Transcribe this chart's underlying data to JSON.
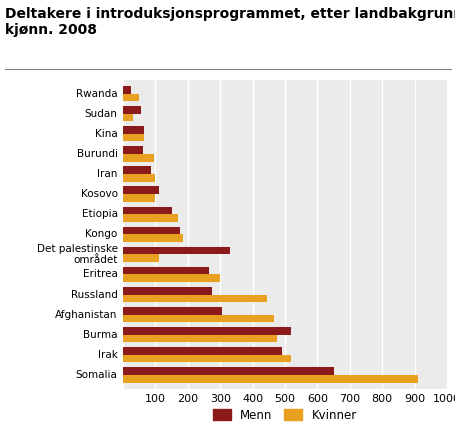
{
  "title_line1": "Deltakere i introduksjonsprogrammet, etter landbakgrunn og",
  "title_line2": "kjønn. 2008",
  "countries": [
    "Somalia",
    "Irak",
    "Burma",
    "Afghanistan",
    "Russland",
    "Eritrea",
    "Det palestinske\nområdet",
    "Kongo",
    "Etiopia",
    "Kosovo",
    "Iran",
    "Burundi",
    "Kina",
    "Sudan",
    "Rwanda"
  ],
  "menn": [
    650,
    490,
    520,
    305,
    275,
    265,
    330,
    175,
    150,
    110,
    85,
    60,
    65,
    55,
    25
  ],
  "kvinner": [
    910,
    520,
    475,
    465,
    445,
    300,
    110,
    185,
    170,
    100,
    100,
    95,
    65,
    30,
    50
  ],
  "menn_color": "#8B1A1A",
  "kvinner_color": "#E8A020",
  "background_color": "#ebebeb",
  "xlim": [
    0,
    1000
  ],
  "xticks": [
    0,
    100,
    200,
    300,
    400,
    500,
    600,
    700,
    800,
    900,
    1000
  ],
  "title_fontsize": 10,
  "legend_labels": [
    "Menn",
    "Kvinner"
  ]
}
